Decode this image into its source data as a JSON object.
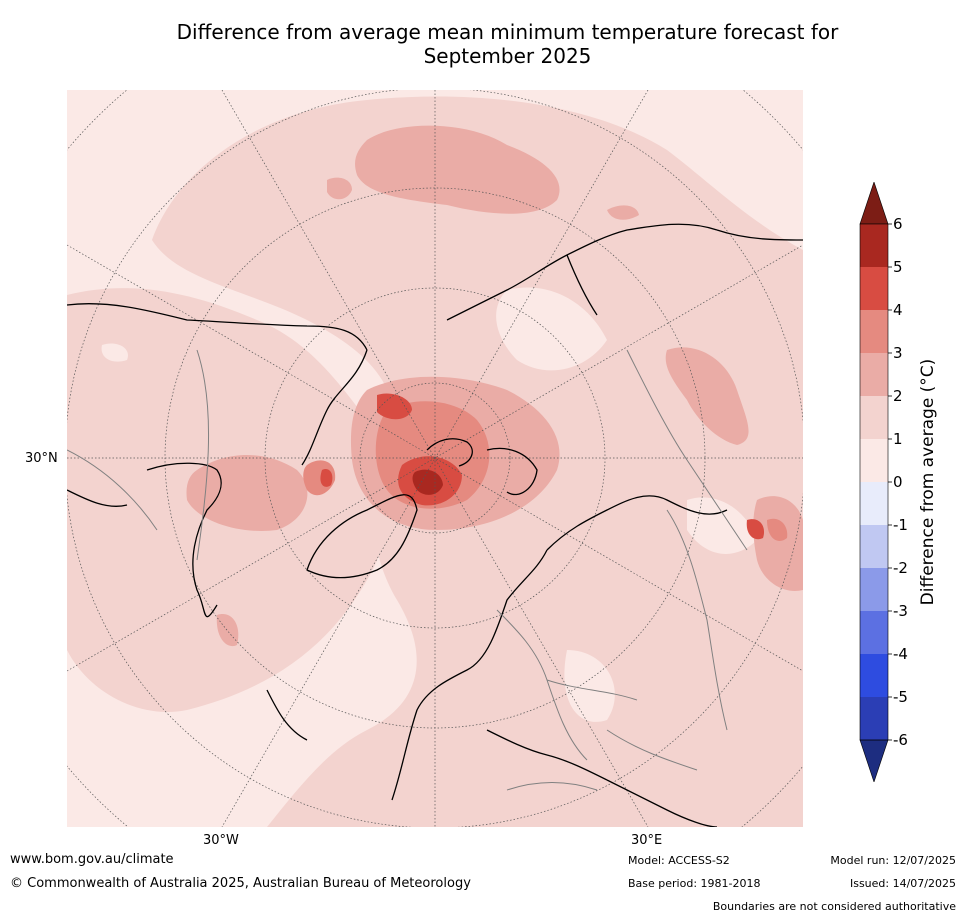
{
  "title_line1": "Difference from average mean minimum temperature forecast for",
  "title_line2": "September 2025",
  "map": {
    "lat_label": "30°N",
    "lon_labels": [
      "30°W",
      "30°E"
    ],
    "projection": "north-polar-stereographic",
    "colors": {
      "t0_1": "#fbe9e6",
      "t1_2": "#f3d3cf",
      "t2_3": "#eaaca6",
      "t3_4": "#e58a80",
      "t4_5": "#d84c42",
      "t5_6": "#a92820",
      "gt6": "#7c1d15"
    }
  },
  "colorbar": {
    "label": "Difference from average ($^\\circ$C)",
    "label_display": "Difference from average (°C)",
    "ticks": [
      "6",
      "5",
      "4",
      "3",
      "2",
      "1",
      "0",
      "-1",
      "-2",
      "-3",
      "-4",
      "-5",
      "-6"
    ],
    "colors": [
      "#a92820",
      "#d84c42",
      "#e58a80",
      "#eaaca6",
      "#f3d3cf",
      "#fbe9e6",
      "#e8ecfb",
      "#c0c8f2",
      "#8b9ae9",
      "#5c70e2",
      "#2e4ce0",
      "#2b3eb5"
    ],
    "over_color": "#7c1d15",
    "under_color": "#1d2d80"
  },
  "footer": {
    "url": "www.bom.gov.au/climate",
    "copyright": "© Commonwealth of Australia 2025, Australian Bureau of Meteorology",
    "model": "Model: ACCESS-S2",
    "base_period": "Base period: 1981-2018",
    "model_run": "Model run: 12/07/2025",
    "issued": "Issued: 14/07/2025",
    "disclaimer": "Boundaries are not considered authoritative"
  }
}
